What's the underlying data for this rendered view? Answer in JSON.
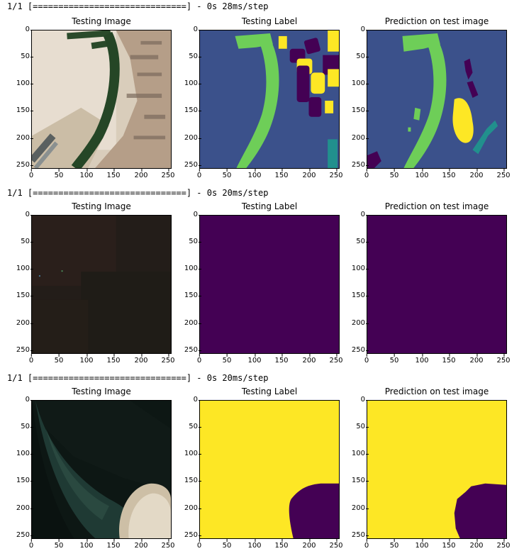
{
  "rows": [
    {
      "log": "1/1 [==============================] - 0s 28ms/step",
      "panels": [
        {
          "title": "Testing Image",
          "kind": "photo-aerial-port"
        },
        {
          "title": "Testing Label",
          "kind": "label-port"
        },
        {
          "title": "Prediction on test image",
          "kind": "pred-port"
        }
      ]
    },
    {
      "log": "1/1 [==============================] - 0s 20ms/step",
      "panels": [
        {
          "title": "Testing Image",
          "kind": "photo-dark"
        },
        {
          "title": "Testing Label",
          "kind": "label-flat"
        },
        {
          "title": "Prediction on test image",
          "kind": "pred-flat"
        }
      ]
    },
    {
      "log": "1/1 [==============================] - 0s 20ms/step",
      "panels": [
        {
          "title": "Testing Image",
          "kind": "photo-coast"
        },
        {
          "title": "Testing Label",
          "kind": "label-coast"
        },
        {
          "title": "Prediction on test image",
          "kind": "pred-coast"
        }
      ]
    }
  ],
  "axis_ticks": {
    "x": [
      "0",
      "50",
      "100",
      "150",
      "200",
      "250"
    ],
    "y": [
      "0",
      "50",
      "100",
      "150",
      "200",
      "250"
    ]
  },
  "colors": {
    "viridis_purple": "#440154",
    "viridis_blue": "#3b518b",
    "viridis_teal": "#21908d",
    "viridis_green": "#6ece58",
    "viridis_yellow": "#fde725"
  }
}
